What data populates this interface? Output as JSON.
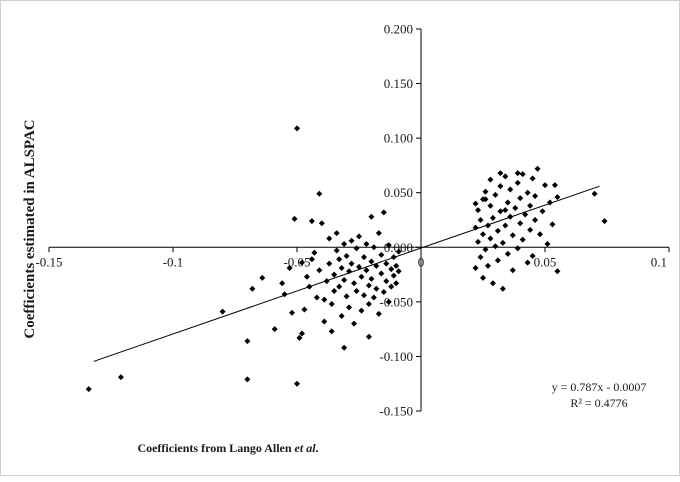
{
  "chart_data": {
    "type": "scatter",
    "title": "",
    "xlabel_parts": [
      "Coefficients from Lango Allen ",
      "et al",
      "."
    ],
    "ylabel": "Coefficients estimated in ALSPAC",
    "xlim": [
      -0.15,
      0.1
    ],
    "ylim": [
      -0.15,
      0.2
    ],
    "x_ticks": [
      -0.15,
      -0.1,
      -0.05,
      0,
      0.05,
      0.1
    ],
    "x_tick_labels": [
      "-0.15",
      "-0.1",
      "-0.05",
      "0",
      "0.05",
      "0.1"
    ],
    "y_ticks": [
      -0.15,
      -0.1,
      -0.05,
      0.0,
      0.05,
      0.1,
      0.15,
      0.2
    ],
    "y_tick_labels": [
      "-0.150",
      "-0.100",
      "-0.050",
      "0.000",
      "0.050",
      "0.100",
      "0.150",
      "0.200"
    ],
    "grid": false,
    "legend": "none",
    "marker_color": "#000000",
    "trendline": {
      "slope": 0.787,
      "intercept": -0.0007,
      "x_range": [
        -0.132,
        0.072
      ]
    },
    "trend_equation": "y = 0.787x - 0.0007",
    "r_squared": "R² = 0.4776",
    "points": [
      [
        -0.134,
        -0.13
      ],
      [
        -0.121,
        -0.119
      ],
      [
        -0.08,
        -0.059
      ],
      [
        -0.07,
        -0.121
      ],
      [
        -0.07,
        -0.086
      ],
      [
        -0.068,
        -0.038
      ],
      [
        -0.064,
        -0.028
      ],
      [
        -0.059,
        -0.075
      ],
      [
        -0.056,
        -0.033
      ],
      [
        -0.055,
        -0.043
      ],
      [
        -0.053,
        -0.019
      ],
      [
        -0.052,
        -0.06
      ],
      [
        -0.051,
        0.026
      ],
      [
        -0.05,
        0.109
      ],
      [
        -0.05,
        -0.125
      ],
      [
        -0.049,
        -0.083
      ],
      [
        -0.048,
        -0.079
      ],
      [
        -0.047,
        -0.057
      ],
      [
        -0.046,
        -0.027
      ],
      [
        -0.045,
        -0.036
      ],
      [
        -0.044,
        -0.011
      ],
      [
        -0.043,
        -0.005
      ],
      [
        -0.042,
        -0.046
      ],
      [
        -0.041,
        -0.021
      ],
      [
        -0.04,
        0.022
      ],
      [
        -0.039,
        -0.068
      ],
      [
        -0.039,
        -0.048
      ],
      [
        -0.038,
        -0.031
      ],
      [
        -0.037,
        -0.015
      ],
      [
        -0.037,
        0.008
      ],
      [
        -0.036,
        -0.052
      ],
      [
        -0.035,
        -0.025
      ],
      [
        -0.035,
        -0.04
      ],
      [
        -0.034,
        -0.003
      ],
      [
        -0.034,
        0.013
      ],
      [
        -0.033,
        -0.011
      ],
      [
        -0.033,
        -0.036
      ],
      [
        -0.032,
        -0.019
      ],
      [
        -0.032,
        -0.063
      ],
      [
        -0.031,
        -0.03
      ],
      [
        -0.031,
        0.003
      ],
      [
        -0.03,
        -0.045
      ],
      [
        -0.03,
        -0.008
      ],
      [
        -0.029,
        -0.022
      ],
      [
        -0.029,
        -0.055
      ],
      [
        -0.028,
        -0.015
      ],
      [
        -0.028,
        0.006
      ],
      [
        -0.027,
        -0.033
      ],
      [
        -0.027,
        -0.07
      ],
      [
        -0.026,
        -0.001
      ],
      [
        -0.026,
        -0.04
      ],
      [
        -0.025,
        -0.018
      ],
      [
        -0.025,
        0.01
      ],
      [
        -0.024,
        -0.027
      ],
      [
        -0.024,
        -0.058
      ],
      [
        -0.023,
        -0.009
      ],
      [
        -0.023,
        -0.044
      ],
      [
        -0.022,
        -0.021
      ],
      [
        -0.022,
        0.003
      ],
      [
        -0.021,
        -0.035
      ],
      [
        -0.021,
        -0.052
      ],
      [
        -0.02,
        -0.013
      ],
      [
        -0.02,
        -0.029
      ],
      [
        -0.019,
        0.0
      ],
      [
        -0.019,
        -0.046
      ],
      [
        -0.018,
        -0.017
      ],
      [
        -0.018,
        -0.038
      ],
      [
        -0.017,
        0.013
      ],
      [
        -0.017,
        -0.061
      ],
      [
        -0.016,
        -0.024
      ],
      [
        -0.016,
        -0.007
      ],
      [
        -0.015,
        0.032
      ],
      [
        -0.015,
        -0.041
      ],
      [
        -0.014,
        -0.015
      ],
      [
        -0.014,
        -0.031
      ],
      [
        -0.013,
        0.002
      ],
      [
        -0.013,
        -0.05
      ],
      [
        -0.012,
        -0.02
      ],
      [
        -0.012,
        -0.036
      ],
      [
        -0.011,
        -0.009
      ],
      [
        -0.011,
        -0.026
      ],
      [
        -0.01,
        -0.017
      ],
      [
        -0.01,
        -0.033
      ],
      [
        -0.009,
        -0.004
      ],
      [
        -0.009,
        -0.022
      ],
      [
        -0.02,
        0.028
      ],
      [
        -0.041,
        0.049
      ],
      [
        -0.044,
        0.024
      ],
      [
        -0.031,
        -0.092
      ],
      [
        -0.048,
        -0.014
      ],
      [
        -0.021,
        -0.082
      ],
      [
        -0.036,
        -0.077
      ],
      [
        0.022,
        0.04
      ],
      [
        0.022,
        0.018
      ],
      [
        0.022,
        -0.019
      ],
      [
        0.023,
        0.005
      ],
      [
        0.023,
        0.034
      ],
      [
        0.024,
        -0.009
      ],
      [
        0.024,
        0.025
      ],
      [
        0.025,
        0.044
      ],
      [
        0.025,
        -0.028
      ],
      [
        0.025,
        0.012
      ],
      [
        0.026,
        0.051
      ],
      [
        0.026,
        -0.002
      ],
      [
        0.027,
        0.02
      ],
      [
        0.027,
        -0.017
      ],
      [
        0.028,
        0.038
      ],
      [
        0.028,
        0.008
      ],
      [
        0.028,
        0.062
      ],
      [
        0.029,
        -0.033
      ],
      [
        0.029,
        0.027
      ],
      [
        0.03,
        0.001
      ],
      [
        0.03,
        0.048
      ],
      [
        0.031,
        0.015
      ],
      [
        0.031,
        -0.012
      ],
      [
        0.032,
        0.056
      ],
      [
        0.032,
        0.033
      ],
      [
        0.033,
        0.004
      ],
      [
        0.033,
        -0.038
      ],
      [
        0.034,
        0.02
      ],
      [
        0.034,
        0.065
      ],
      [
        0.035,
        0.041
      ],
      [
        0.035,
        -0.006
      ],
      [
        0.036,
        0.028
      ],
      [
        0.036,
        0.053
      ],
      [
        0.037,
        0.011
      ],
      [
        0.037,
        -0.021
      ],
      [
        0.038,
        0.036
      ],
      [
        0.039,
        0.059
      ],
      [
        0.039,
        -0.001
      ],
      [
        0.04,
        0.022
      ],
      [
        0.04,
        0.045
      ],
      [
        0.041,
        0.067
      ],
      [
        0.041,
        0.007
      ],
      [
        0.042,
        0.03
      ],
      [
        0.043,
        -0.014
      ],
      [
        0.043,
        0.05
      ],
      [
        0.044,
        0.016
      ],
      [
        0.044,
        0.038
      ],
      [
        0.045,
        0.063
      ],
      [
        0.045,
        -0.008
      ],
      [
        0.046,
        0.025
      ],
      [
        0.046,
        0.047
      ],
      [
        0.047,
        0.072
      ],
      [
        0.048,
        0.012
      ],
      [
        0.049,
        0.033
      ],
      [
        0.05,
        0.057
      ],
      [
        0.051,
        0.003
      ],
      [
        0.052,
        0.041
      ],
      [
        0.053,
        0.021
      ],
      [
        0.054,
        0.057
      ],
      [
        0.055,
        0.046
      ],
      [
        0.055,
        -0.022
      ],
      [
        0.07,
        0.049
      ],
      [
        0.074,
        0.024
      ],
      [
        0.032,
        0.068
      ],
      [
        0.039,
        0.068
      ],
      [
        0.026,
        0.044
      ],
      [
        0.034,
        0.034
      ]
    ]
  }
}
